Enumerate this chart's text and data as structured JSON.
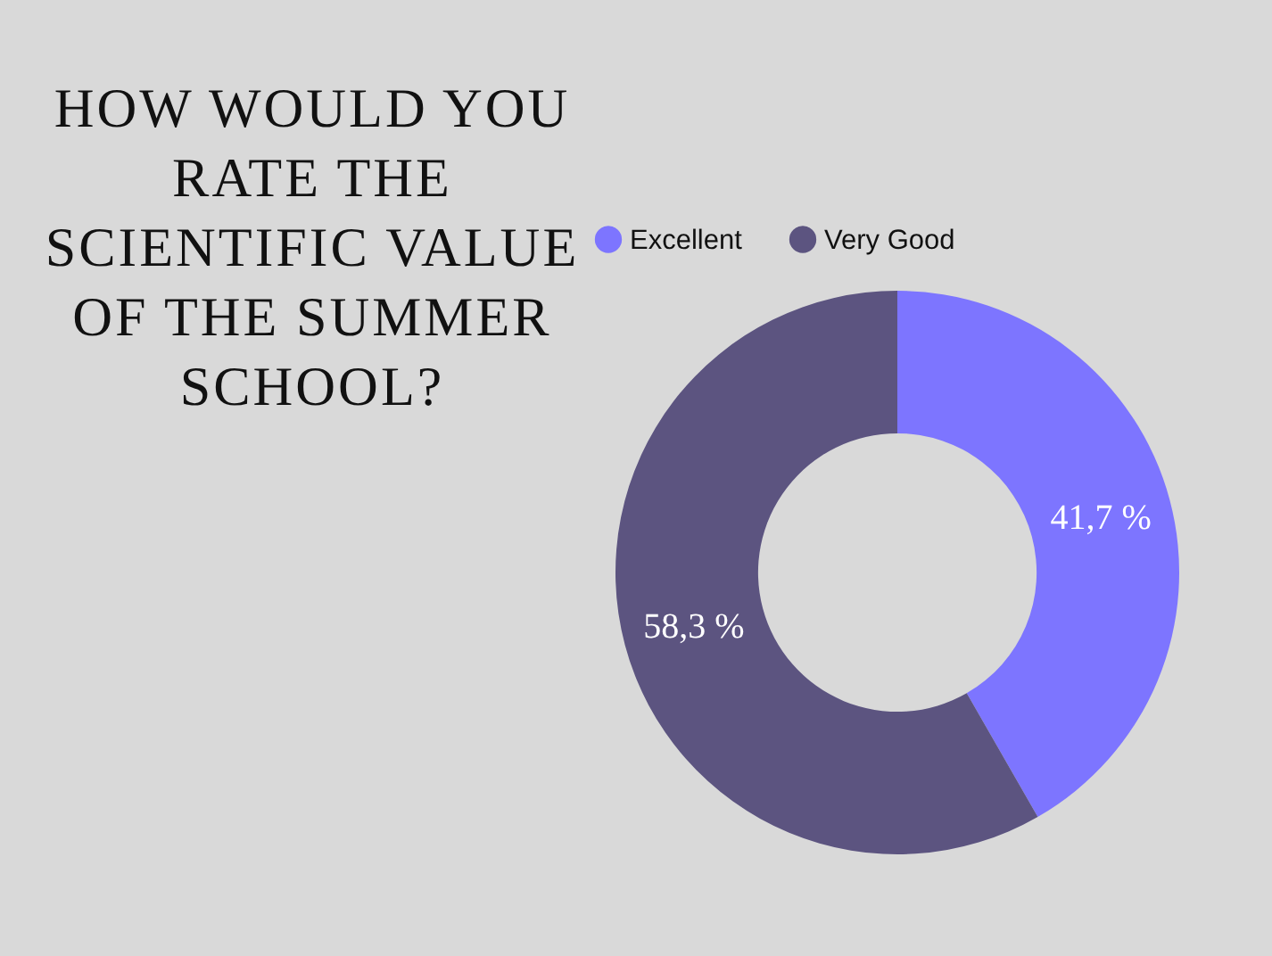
{
  "chart_data": {
    "type": "donut",
    "title": "HOW WOULD YOU RATE THE SCIENTIFIC VALUE OF THE SUMMER SCHOOL?",
    "categories": [
      "Excellent",
      "Very Good"
    ],
    "values": [
      41.7,
      58.3
    ],
    "colors": [
      "#7d75ff",
      "#5c5480"
    ],
    "value_labels": [
      "41,7 %",
      "58,3 %"
    ],
    "legend": "top"
  }
}
